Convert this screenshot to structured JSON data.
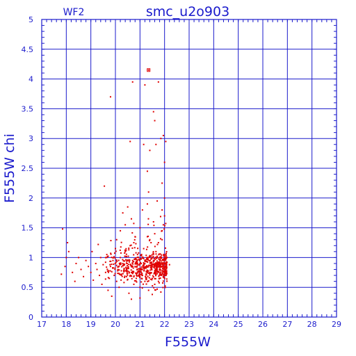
{
  "chart_data": {
    "type": "scatter",
    "title": "smc_u2o903",
    "subtitle": "WF2",
    "xlabel": "F555W",
    "ylabel": "F555W chi",
    "xlim": [
      17,
      29
    ],
    "ylim": [
      0,
      5
    ],
    "xticks": [
      "17",
      "18",
      "19",
      "20",
      "21",
      "22",
      "23",
      "24",
      "25",
      "26",
      "27",
      "28",
      "29"
    ],
    "yticks": [
      "0",
      "0.5",
      "1",
      "1.5",
      "2",
      "2.5",
      "3",
      "3.5",
      "4",
      "4.5",
      "5"
    ],
    "grid": true,
    "colors": {
      "axes": "#1a1acc",
      "points": "#e00000"
    },
    "series": [
      {
        "points": [
          [
            21.35,
            4.15
          ],
          [
            20.7,
            3.95
          ],
          [
            21.75,
            3.95
          ],
          [
            21.2,
            3.9
          ],
          [
            19.8,
            3.7
          ],
          [
            21.55,
            3.45
          ],
          [
            21.6,
            3.3
          ],
          [
            21.95,
            3.05
          ],
          [
            21.85,
            3.0
          ],
          [
            22.05,
            2.95
          ],
          [
            20.6,
            2.95
          ],
          [
            21.65,
            2.9
          ],
          [
            21.15,
            2.9
          ],
          [
            21.4,
            2.8
          ],
          [
            22.0,
            2.6
          ],
          [
            21.3,
            2.45
          ],
          [
            19.55,
            2.2
          ],
          [
            21.9,
            2.25
          ],
          [
            21.35,
            2.1
          ],
          [
            22.0,
            2.0
          ],
          [
            21.7,
            1.95
          ],
          [
            21.3,
            1.9
          ],
          [
            20.5,
            1.85
          ],
          [
            21.9,
            1.8
          ],
          [
            21.1,
            1.8
          ],
          [
            20.3,
            1.75
          ],
          [
            22.0,
            1.7
          ],
          [
            20.65,
            1.65
          ],
          [
            21.55,
            1.6
          ],
          [
            20.4,
            1.55
          ],
          [
            21.95,
            1.55
          ],
          [
            17.85,
            1.48
          ],
          [
            21.0,
            1.5
          ],
          [
            20.2,
            1.45
          ],
          [
            21.6,
            1.4
          ],
          [
            20.8,
            1.35
          ],
          [
            21.3,
            1.35
          ],
          [
            20.05,
            1.3
          ],
          [
            18.05,
            1.25
          ],
          [
            21.75,
            1.25
          ],
          [
            19.3,
            1.22
          ],
          [
            18.1,
            1.1
          ],
          [
            18.0,
            1.0
          ],
          [
            17.95,
            0.85
          ],
          [
            17.8,
            0.72
          ],
          [
            18.25,
            0.75
          ],
          [
            18.35,
            0.6
          ],
          [
            18.4,
            0.9
          ],
          [
            18.5,
            1.0
          ],
          [
            18.6,
            0.8
          ],
          [
            18.7,
            0.68
          ],
          [
            18.8,
            0.95
          ],
          [
            18.9,
            0.85
          ],
          [
            19.0,
            0.75
          ],
          [
            19.05,
            1.1
          ],
          [
            19.1,
            0.62
          ],
          [
            19.2,
            0.9
          ],
          [
            19.25,
            0.8
          ],
          [
            19.35,
            0.7
          ],
          [
            19.4,
            1.0
          ],
          [
            19.45,
            0.55
          ],
          [
            19.5,
            0.88
          ],
          [
            19.6,
            0.75
          ],
          [
            19.65,
            1.05
          ],
          [
            19.7,
            0.45
          ],
          [
            19.75,
            0.65
          ],
          [
            19.8,
            0.85
          ],
          [
            19.85,
            0.35
          ],
          [
            19.9,
            0.95
          ],
          [
            19.95,
            0.7
          ],
          [
            20.0,
            1.15
          ],
          [
            20.05,
            0.6
          ],
          [
            20.1,
            0.8
          ],
          [
            20.15,
            0.5
          ],
          [
            20.2,
            1.0
          ],
          [
            20.25,
            0.72
          ],
          [
            20.3,
            0.9
          ],
          [
            20.35,
            0.58
          ],
          [
            20.4,
            1.1
          ],
          [
            20.45,
            0.68
          ],
          [
            20.5,
            0.82
          ],
          [
            20.55,
            0.4
          ],
          [
            20.6,
            1.2
          ],
          [
            20.65,
            0.75
          ],
          [
            20.7,
            0.95
          ],
          [
            20.75,
            0.55
          ],
          [
            20.8,
            0.85
          ],
          [
            20.85,
            0.65
          ],
          [
            20.9,
            1.05
          ],
          [
            20.95,
            0.78
          ],
          [
            21.0,
            0.5
          ],
          [
            21.05,
            0.9
          ],
          [
            21.1,
            0.7
          ],
          [
            21.15,
            1.15
          ],
          [
            21.2,
            0.6
          ],
          [
            21.25,
            0.85
          ],
          [
            21.3,
            1.0
          ],
          [
            21.35,
            0.45
          ],
          [
            21.4,
            0.75
          ],
          [
            21.45,
            1.25
          ],
          [
            21.5,
            0.65
          ],
          [
            21.55,
            0.95
          ],
          [
            21.6,
            0.55
          ],
          [
            21.65,
            1.1
          ],
          [
            21.7,
            0.8
          ],
          [
            21.75,
            0.6
          ],
          [
            21.8,
            1.0
          ],
          [
            21.85,
            0.7
          ],
          [
            21.9,
            1.3
          ],
          [
            21.95,
            0.85
          ],
          [
            22.0,
            0.65
          ],
          [
            22.05,
            1.05
          ],
          [
            22.1,
            0.92
          ],
          [
            22.2,
            0.88
          ],
          [
            21.85,
            0.42
          ],
          [
            21.5,
            0.38
          ],
          [
            21.0,
            0.32
          ],
          [
            20.65,
            0.3
          ],
          [
            21.9,
            1.45
          ],
          [
            21.4,
            1.3
          ]
        ],
        "generated": {
          "seed": 1234,
          "count": 620,
          "x_range": [
            19.5,
            22.1
          ],
          "y_center": 0.85,
          "y_spread": 0.18
        }
      }
    ]
  }
}
